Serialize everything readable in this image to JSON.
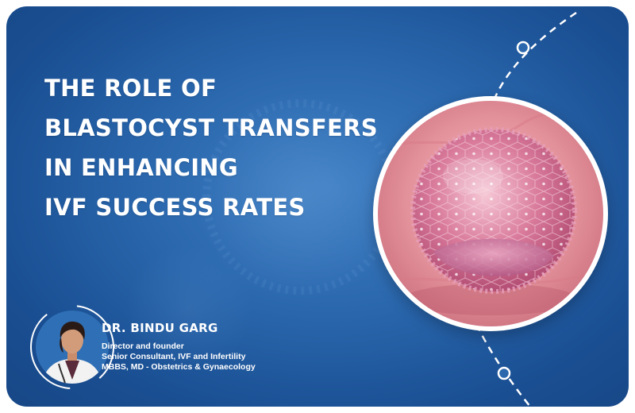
{
  "headline": {
    "lines": [
      "THE ROLE OF",
      "BLASTOCYST TRANSFERS",
      "IN ENHANCING",
      "IVF SUCCESS RATES"
    ]
  },
  "doctor": {
    "name": "DR. BINDU GARG",
    "credentials": [
      "Director and founder",
      "Senior Consultant, IVF and Infertility",
      "MBBS, MD - Obstetrics & Gynaecology"
    ]
  },
  "colors": {
    "background": "#2a67ad",
    "accent": "#ffffff",
    "embryo": "#c9597a"
  },
  "images": {
    "hero": "blastocyst-embryo-image",
    "portrait": "doctor-portrait-image"
  }
}
